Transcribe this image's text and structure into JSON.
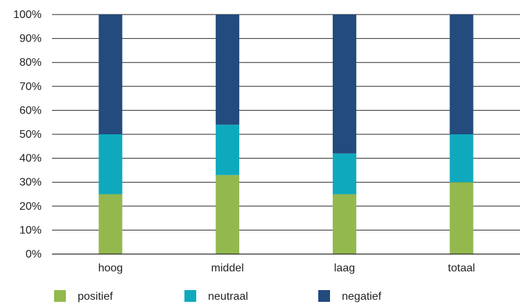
{
  "chart_data": {
    "type": "bar",
    "stacked": true,
    "categories": [
      "hoog",
      "middel",
      "laag",
      "totaal"
    ],
    "series": [
      {
        "name": "positief",
        "color": "#93b94e",
        "values": [
          25,
          33,
          25,
          30
        ]
      },
      {
        "name": "neutraal",
        "color": "#0fa9be",
        "values": [
          25,
          21,
          17,
          20
        ]
      },
      {
        "name": "negatief",
        "color": "#234b7d",
        "values": [
          50,
          46,
          58,
          50
        ]
      }
    ],
    "ylim": [
      0,
      100
    ],
    "yticks": [
      "0%",
      "10%",
      "20%",
      "30%",
      "40%",
      "50%",
      "60%",
      "70%",
      "80%",
      "90%",
      "100%"
    ],
    "grid": true,
    "legend_position": "bottom"
  }
}
